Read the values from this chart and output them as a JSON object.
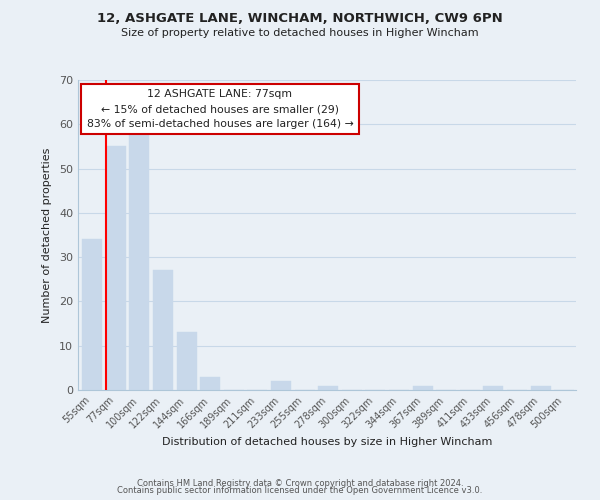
{
  "title1": "12, ASHGATE LANE, WINCHAM, NORTHWICH, CW9 6PN",
  "title2": "Size of property relative to detached houses in Higher Wincham",
  "xlabel": "Distribution of detached houses by size in Higher Wincham",
  "ylabel": "Number of detached properties",
  "footer1": "Contains HM Land Registry data © Crown copyright and database right 2024.",
  "footer2": "Contains public sector information licensed under the Open Government Licence v3.0.",
  "bin_labels": [
    "55sqm",
    "77sqm",
    "100sqm",
    "122sqm",
    "144sqm",
    "166sqm",
    "189sqm",
    "211sqm",
    "233sqm",
    "255sqm",
    "278sqm",
    "300sqm",
    "322sqm",
    "344sqm",
    "367sqm",
    "389sqm",
    "411sqm",
    "433sqm",
    "456sqm",
    "478sqm",
    "500sqm"
  ],
  "bar_heights": [
    34,
    55,
    58,
    27,
    13,
    3,
    0,
    0,
    2,
    0,
    1,
    0,
    0,
    0,
    1,
    0,
    0,
    1,
    0,
    1,
    0
  ],
  "bar_color": "#c8d8ea",
  "red_line_bar_index": 1,
  "ylim": [
    0,
    70
  ],
  "yticks": [
    0,
    10,
    20,
    30,
    40,
    50,
    60,
    70
  ],
  "annotation_title": "12 ASHGATE LANE: 77sqm",
  "annotation_line1": "← 15% of detached houses are smaller (29)",
  "annotation_line2": "83% of semi-detached houses are larger (164) →",
  "annotation_box_facecolor": "#ffffff",
  "annotation_box_edgecolor": "#cc0000",
  "grid_color": "#c8d8e8",
  "background_color": "#eaf0f6",
  "spine_color": "#aec6d8",
  "tick_color": "#555555",
  "text_color": "#222222",
  "footer_color": "#555555"
}
